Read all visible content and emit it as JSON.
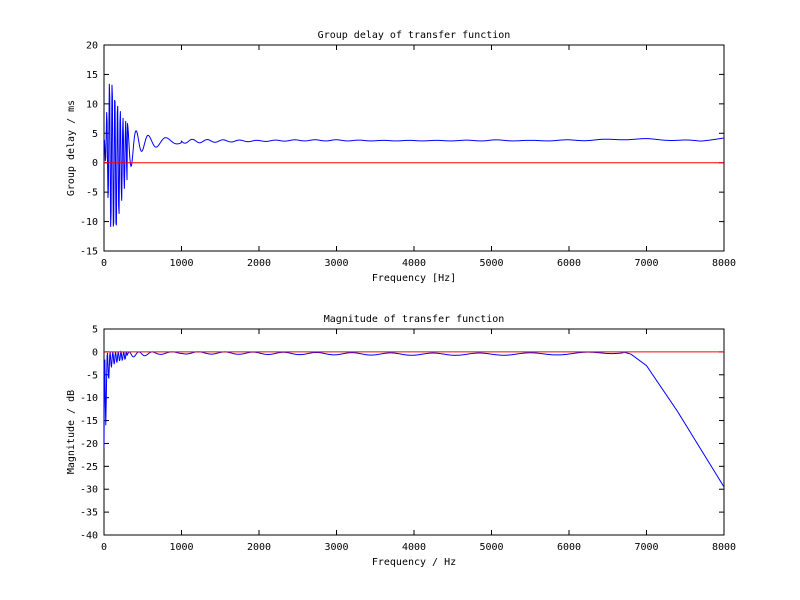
{
  "colors": {
    "signal": "#0000ff",
    "reference": "#ff0000",
    "axes": "#000000",
    "background": "#ffffff"
  },
  "chart_data": [
    {
      "type": "line",
      "title": "Group delay of transfer function",
      "xlabel": "Frequency [Hz]",
      "ylabel": "Group delay / ms",
      "xlim": [
        0,
        8000
      ],
      "ylim": [
        -15,
        20
      ],
      "xticks": [
        "0",
        "1000",
        "2000",
        "3000",
        "4000",
        "5000",
        "6000",
        "7000",
        "8000"
      ],
      "yticks": [
        "20",
        "15",
        "10",
        "5",
        "0",
        "-5",
        "-10",
        "-15"
      ],
      "grid": false,
      "reference_line": 0,
      "series": [
        {
          "x": [
            0,
            80,
            150,
            250,
            400,
            600,
            1000,
            1500,
            2000,
            2500,
            3000,
            3500,
            4000,
            4500,
            5000,
            5500,
            6000,
            6500,
            6700,
            7000,
            7500,
            7700,
            8000
          ],
          "values": [
            3.5,
            15.5,
            11.5,
            7.5,
            5.5,
            4.5,
            4.0,
            3.9,
            3.8,
            3.9,
            3.9,
            3.8,
            3.8,
            3.8,
            3.9,
            3.8,
            3.9,
            4.0,
            4.1,
            4.1,
            3.9,
            3.7,
            4.2
          ],
          "ripple_low": [
            3.5,
            -11.5,
            -12.5,
            -5.0,
            1.5,
            2.5,
            3.3,
            3.5,
            3.6,
            3.7,
            3.7,
            3.7,
            3.7,
            3.7,
            3.7,
            3.7,
            3.7,
            3.8,
            3.9,
            3.9,
            3.7,
            3.6,
            4.2
          ]
        }
      ]
    },
    {
      "type": "line",
      "title": "Magnitude of transfer function",
      "xlabel": "Frequency / Hz",
      "ylabel": "Magnitude / dB",
      "xlim": [
        0,
        8000
      ],
      "ylim": [
        -40,
        5
      ],
      "xticks": [
        "0",
        "1000",
        "2000",
        "3000",
        "4000",
        "5000",
        "6000",
        "7000",
        "8000"
      ],
      "yticks": [
        "5",
        "0",
        "-5",
        "-10",
        "-15",
        "-20",
        "-25",
        "-30",
        "-35",
        "-40"
      ],
      "grid": false,
      "reference_line": 0,
      "series": [
        {
          "x": [
            0,
            30,
            60,
            100,
            200,
            400,
            700,
            1000,
            2000,
            3000,
            4000,
            5000,
            6000,
            6500,
            6700,
            6800,
            7000,
            7200,
            7400,
            7600,
            7800,
            8000
          ],
          "values": [
            -21,
            -5,
            -3,
            -1.5,
            -1.0,
            -0.5,
            -0.3,
            -0.2,
            -0.3,
            -0.4,
            -0.5,
            -0.5,
            -0.4,
            -0.2,
            0,
            -0.5,
            -3.0,
            -8.0,
            -13.0,
            -18.5,
            -24.0,
            -29.5
          ]
        }
      ]
    }
  ]
}
